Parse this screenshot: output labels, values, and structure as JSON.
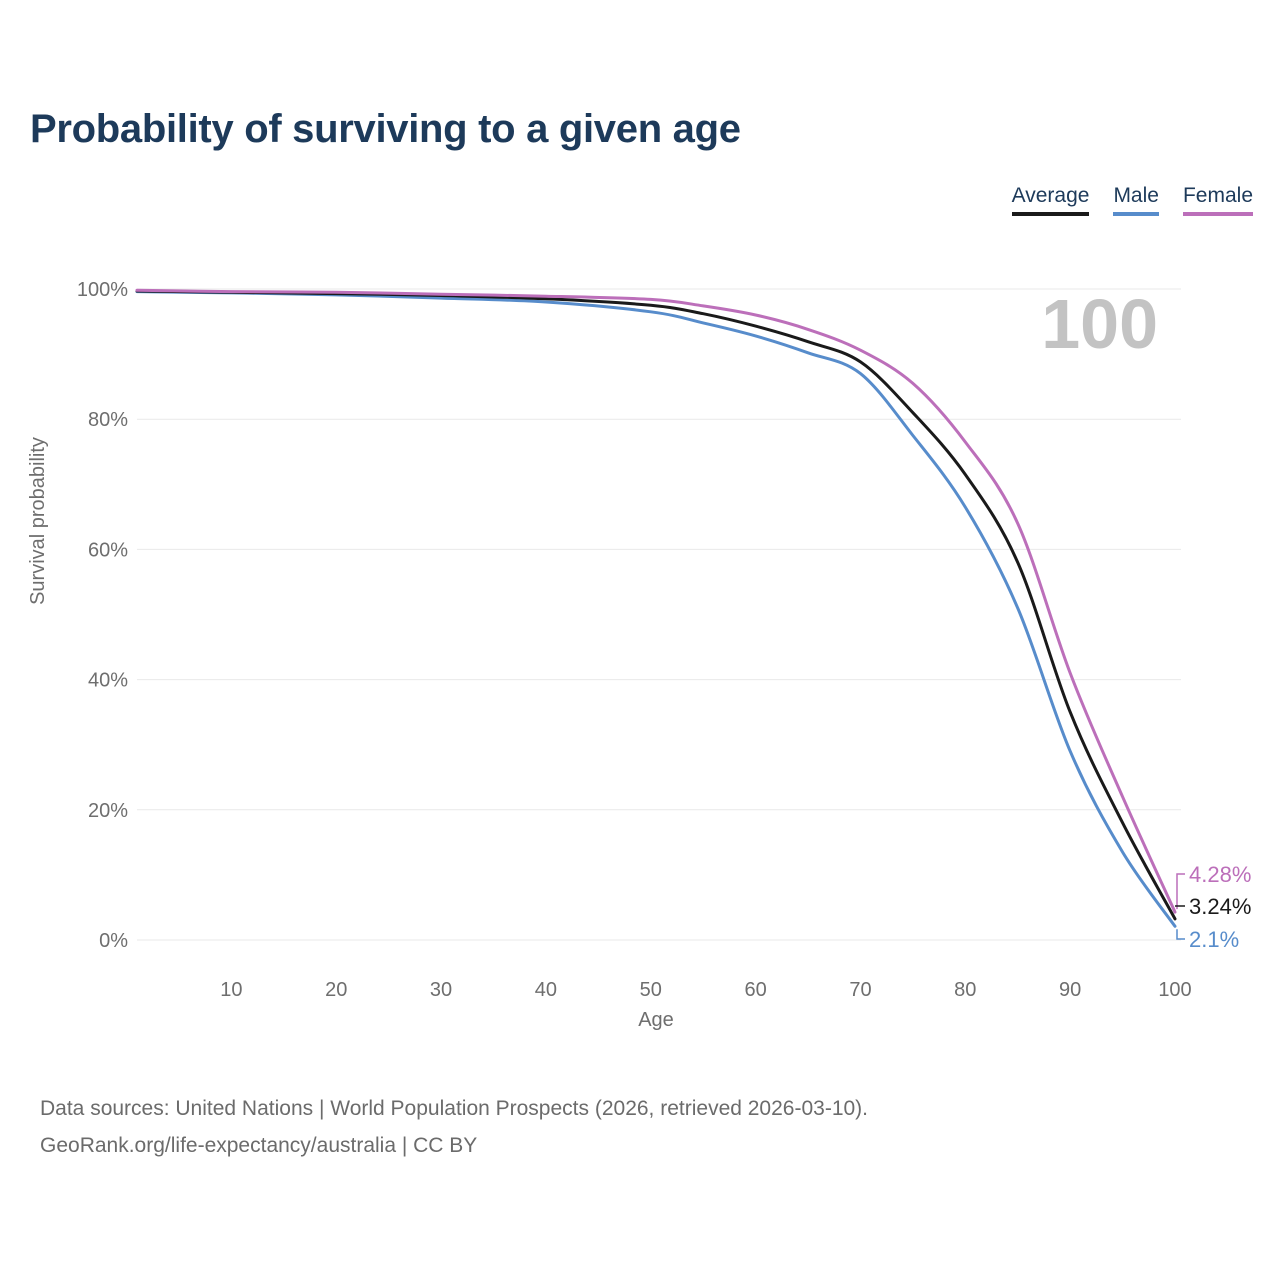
{
  "header": {
    "title": "Probability of surviving to a given age"
  },
  "legend": {
    "items": [
      {
        "label": "Average",
        "color": "#1a1a1a"
      },
      {
        "label": "Male",
        "color": "#578ccb"
      },
      {
        "label": "Female",
        "color": "#bc6fba"
      }
    ]
  },
  "footer": {
    "line1": "Data sources: United Nations | World Population Prospects (2026, retrieved 2026-03-10).",
    "line2": "GeoRank.org/life-expectancy/australia | CC BY"
  },
  "chart_data": {
    "type": "line",
    "title": "Probability of surviving to a given age",
    "xlabel": "Age",
    "ylabel": "Survival probability",
    "watermark": "100",
    "x_range": [
      1,
      100
    ],
    "y_range": [
      0,
      100
    ],
    "grid": "horizontal-only",
    "legend_position": "top-right",
    "x_ticks": [
      10,
      20,
      30,
      40,
      50,
      60,
      70,
      80,
      90,
      100
    ],
    "y_ticks": [
      {
        "value": 100,
        "label": "100%"
      },
      {
        "value": 80,
        "label": "80%"
      },
      {
        "value": 60,
        "label": "60%"
      },
      {
        "value": 40,
        "label": "40%"
      },
      {
        "value": 20,
        "label": "20%"
      },
      {
        "value": 0,
        "label": "0%"
      }
    ],
    "ages": [
      1,
      10,
      20,
      30,
      40,
      50,
      55,
      60,
      65,
      70,
      75,
      80,
      85,
      90,
      95,
      100
    ],
    "series": [
      {
        "name": "Average",
        "color": "#1a1a1a",
        "end_label": "3.24%",
        "values": [
          99.7,
          99.5,
          99.3,
          99.0,
          98.5,
          97.5,
          96.2,
          94.3,
          91.9,
          88.8,
          81.0,
          71.5,
          58.0,
          35.0,
          18.0,
          3.24
        ]
      },
      {
        "name": "Male",
        "color": "#578ccb",
        "end_label": "2.1%",
        "values": [
          99.6,
          99.4,
          99.1,
          98.6,
          98.0,
          96.5,
          94.8,
          92.8,
          90.2,
          87.0,
          77.5,
          66.5,
          51.0,
          29.0,
          13.5,
          2.1
        ]
      },
      {
        "name": "Female",
        "color": "#bc6fba",
        "end_label": "4.28%",
        "values": [
          99.8,
          99.6,
          99.5,
          99.2,
          98.9,
          98.4,
          97.4,
          96.0,
          93.8,
          90.6,
          85.5,
          76.5,
          64.0,
          41.0,
          22.0,
          4.28
        ]
      }
    ]
  }
}
